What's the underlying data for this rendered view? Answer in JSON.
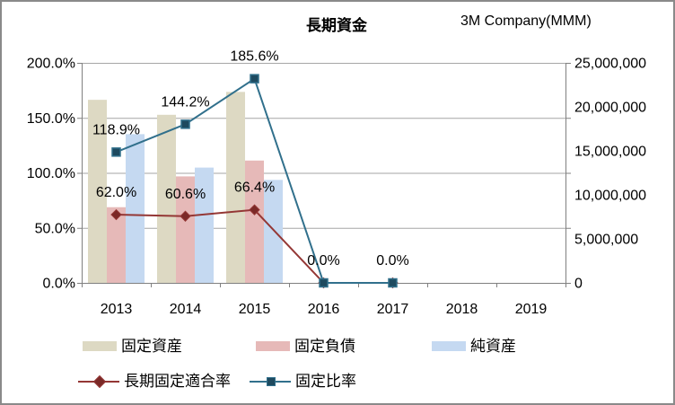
{
  "window": {
    "border_color": "#8a8a8a",
    "background": "#ffffff"
  },
  "header": {
    "title": "長期資金",
    "company": "3M Company(MMM)"
  },
  "chart_data": {
    "type": "combo-bar-line",
    "categories": [
      "2013",
      "2014",
      "2015",
      "2016",
      "2017",
      "2018",
      "2019"
    ],
    "bar_series": [
      {
        "key": "fixed-assets",
        "name": "固定資産",
        "color": "#ddd9c3",
        "axis": "right",
        "values": [
          20800000,
          19100000,
          21700000,
          null,
          null,
          null,
          null
        ]
      },
      {
        "key": "fixed-liabilities",
        "name": "固定負債",
        "color": "#e6b9b8",
        "axis": "right",
        "values": [
          8600000,
          12100000,
          13900000,
          null,
          null,
          null,
          null
        ]
      },
      {
        "key": "net-assets",
        "name": "純資産",
        "color": "#c5d9f1",
        "axis": "right",
        "values": [
          16900000,
          13100000,
          11700000,
          null,
          null,
          null,
          null
        ]
      }
    ],
    "line_series": [
      {
        "key": "long-term-fixed-adequacy-ratio",
        "name": "長期固定適合率",
        "color": "#943735",
        "marker": "diamond",
        "marker_fill": "#7b2927",
        "axis": "left",
        "values": [
          62.0,
          60.6,
          66.4,
          0.0,
          0.0,
          null,
          null
        ],
        "labels": [
          null,
          null,
          null,
          null,
          null,
          null,
          null
        ]
      },
      {
        "key": "fixed-ratio",
        "name": "固定比率",
        "color": "#31708c",
        "marker": "square",
        "marker_fill": "#1e4a5f",
        "axis": "left",
        "values": [
          118.9,
          144.2,
          185.6,
          0.0,
          0.0,
          null,
          null
        ],
        "labels": [
          "118.9%",
          "144.2%",
          "185.6%",
          "0.0%",
          "0.0%",
          null,
          null
        ]
      }
    ],
    "line_point_labels_secondary": [
      "62.0%",
      "60.6%",
      "66.4%",
      null,
      null,
      null,
      null
    ],
    "left_axis": {
      "min": 0,
      "max": 200,
      "tick_labels": [
        "0.0%",
        "50.0%",
        "100.0%",
        "150.0%",
        "200.0%"
      ]
    },
    "right_axis": {
      "min": 0,
      "max": 25000000,
      "tick_labels": [
        "0",
        "5,000,000",
        "10,000,000",
        "15,000,000",
        "20,000,000",
        "25,000,000"
      ]
    },
    "grid": true,
    "gridline_color": "#a6a6a6",
    "axis_color": "#808080",
    "legend_position": "bottom"
  }
}
